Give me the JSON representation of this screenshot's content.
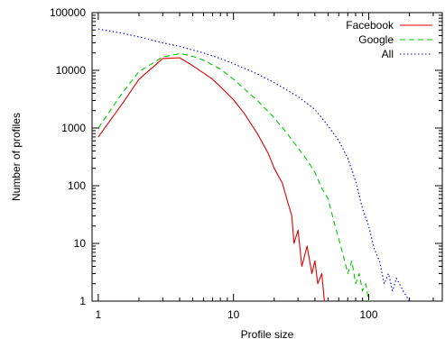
{
  "chart_data": {
    "type": "line",
    "xlabel": "Profile size",
    "ylabel": "Number of profiles",
    "x_scale": "log",
    "y_scale": "log",
    "xlim": [
      0.9,
      350
    ],
    "ylim": [
      1,
      100000
    ],
    "x_ticks": [
      {
        "value": 1,
        "label": "1"
      },
      {
        "value": 10,
        "label": "10"
      },
      {
        "value": 100,
        "label": "100"
      }
    ],
    "y_ticks": [
      {
        "value": 1,
        "label": "1"
      },
      {
        "value": 10,
        "label": "10"
      },
      {
        "value": 100,
        "label": "100"
      },
      {
        "value": 1000,
        "label": "1000"
      },
      {
        "value": 10000,
        "label": "10000"
      },
      {
        "value": 100000,
        "label": "100000"
      }
    ],
    "grid": false,
    "legend_position": "top-right",
    "series": [
      {
        "name": "Facebook",
        "color": "#e00000",
        "dash": "solid",
        "x": [
          1,
          1.5,
          2,
          3,
          4,
          5,
          6,
          7,
          8,
          10,
          12,
          15,
          18,
          20,
          23,
          25,
          27,
          28,
          30,
          32,
          35,
          38,
          40,
          42,
          45,
          47
        ],
        "y": [
          700,
          2600,
          7000,
          16000,
          16500,
          12000,
          9000,
          7000,
          5200,
          3100,
          1800,
          800,
          370,
          200,
          110,
          55,
          30,
          10,
          17,
          4,
          9,
          3,
          5,
          2,
          3,
          1
        ]
      },
      {
        "name": "Google",
        "color": "#00c800",
        "dash": "dashed",
        "x": [
          1,
          1.5,
          2,
          3,
          4,
          5,
          6,
          8,
          10,
          12,
          15,
          20,
          25,
          30,
          35,
          40,
          45,
          50,
          55,
          60,
          65,
          70,
          75,
          80,
          85,
          90,
          95,
          100
        ],
        "y": [
          1000,
          4000,
          9500,
          17000,
          19500,
          17500,
          15000,
          10500,
          7000,
          4800,
          3000,
          1500,
          800,
          450,
          280,
          170,
          90,
          60,
          25,
          12,
          6,
          3,
          5,
          2,
          3,
          1.5,
          2,
          1
        ]
      },
      {
        "name": "All",
        "color": "#0000d0",
        "dash": "dotted",
        "x": [
          1,
          1.5,
          2,
          3,
          4,
          5,
          6,
          8,
          10,
          15,
          20,
          30,
          40,
          50,
          60,
          70,
          80,
          90,
          100,
          110,
          120,
          130,
          140,
          150,
          160,
          180,
          200
        ],
        "y": [
          52000,
          44000,
          38000,
          30000,
          26000,
          22500,
          20000,
          16000,
          13000,
          8700,
          6100,
          3500,
          2100,
          1100,
          600,
          300,
          120,
          40,
          20,
          8,
          5,
          2,
          3,
          1.5,
          2.5,
          1.5,
          1
        ]
      }
    ]
  }
}
